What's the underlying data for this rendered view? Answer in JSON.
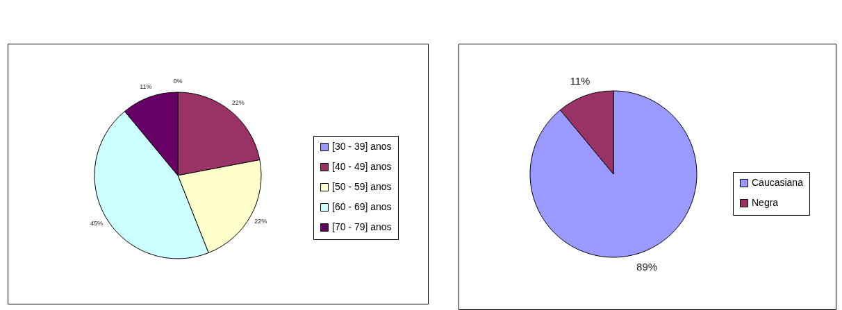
{
  "chart_data": [
    {
      "type": "pie",
      "categories": [
        "[30 - 39] anos",
        "[40 - 49] anos",
        "[50 - 59] anos",
        "[60 - 69] anos",
        "[70 - 79] anos"
      ],
      "values": [
        0,
        22,
        22,
        45,
        11
      ],
      "colors": [
        "#9999ff",
        "#993366",
        "#ffffcc",
        "#ccffff",
        "#660066"
      ],
      "value_labels": [
        "0%",
        "22%",
        "22%",
        "45%",
        "11%"
      ],
      "legend": "right"
    },
    {
      "type": "pie",
      "categories": [
        "Caucasiana",
        "Negra"
      ],
      "values": [
        89,
        11
      ],
      "colors": [
        "#9999ff",
        "#993366"
      ],
      "value_labels": [
        "89%",
        "11%"
      ],
      "legend": "right"
    }
  ]
}
